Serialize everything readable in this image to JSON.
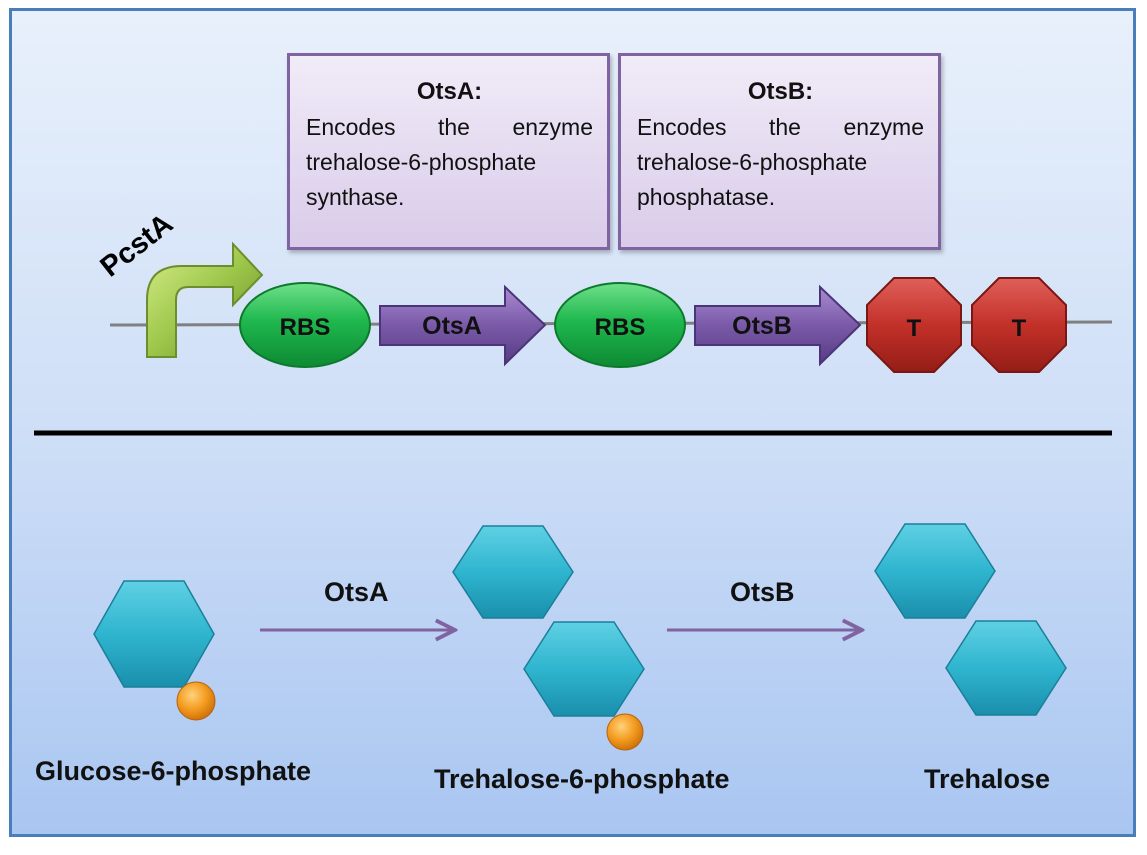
{
  "promoter": {
    "label": "PcstA"
  },
  "genes": [
    {
      "title": "OtsA:",
      "text": "Encodes the enzyme trehalose-6-phosphate synthase."
    },
    {
      "title": "OtsB:",
      "text": "Encodes the enzyme trehalose-6-phosphate phosphatase."
    }
  ],
  "construct": {
    "rbs_label": "RBS",
    "gene1_label": "OtsA",
    "gene2_label": "OtsB",
    "terminator_label": "T"
  },
  "pathway": {
    "step1_enzyme": "OtsA",
    "step2_enzyme": "OtsB",
    "compound1": "Glucose-6-phosphate",
    "compound2": "Trehalose-6-phosphate",
    "compound3": "Trehalose"
  },
  "colors": {
    "frame_border": "#4a7ebb",
    "box_border": "#8064a2",
    "promoter": "#8cb63c",
    "rbs": "#19b24a",
    "gene": "#7a5aa8",
    "terminator": "#c0392b",
    "sugar": "#2fb5cf",
    "phosphate": "#f39a1e",
    "reaction_arrow": "#8064a2"
  }
}
